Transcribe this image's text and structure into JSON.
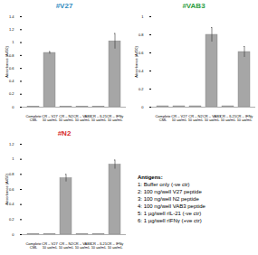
{
  "chart_data": [
    {
      "type": "bar",
      "title": "#V27",
      "categories": [
        "Complete\nCML",
        "CR – V27\n10 µg/mL",
        "CR – N2\n10 µg/mL",
        "CR – VAB3\n10 µg/mL",
        "CR – IL21\n10 µg/mL",
        "CR – IFNγ\n10 µg/mL"
      ],
      "values": [
        0.01,
        0.84,
        0.01,
        0.01,
        0.01,
        1.02
      ],
      "error_bars": [
        0,
        0.02,
        0,
        0,
        0,
        0.12
      ],
      "color": "#a6a6a6",
      "y_label": "Absorbance (A450)",
      "ylim": [
        0,
        1.4
      ],
      "yticks": [
        0,
        0.2,
        0.4,
        0.6,
        0.8,
        1,
        1.2,
        1.4
      ],
      "grid": false
    },
    {
      "type": "bar",
      "title": "#VAB3",
      "categories": [
        "Complete\nCML",
        "CR – V27\n10 µg/mL",
        "CR – N2\n10 µg/mL",
        "CR – VAB3\n10 µg/mL",
        "CR – IL21\n10 µg/mL",
        "CR – IFNγ\n10 µg/mL"
      ],
      "values": [
        0.01,
        0.01,
        0.01,
        0.8,
        0.01,
        0.61
      ],
      "error_bars": [
        0,
        0,
        0,
        0.08,
        0,
        0.06
      ],
      "color": "#a6a6a6",
      "y_label": "Absorbance (A450)",
      "ylim": [
        0,
        1
      ],
      "yticks": [
        0,
        0.2,
        0.4,
        0.6,
        0.8,
        1
      ],
      "grid": false
    },
    {
      "type": "bar",
      "title": "#N2",
      "categories": [
        "Complete\nCML",
        "CR – V27\n10 µg/mL",
        "CR – N2\n10 µg/mL",
        "CR – VAB3\n10 µg/mL",
        "CR – IL21\n10 µg/mL",
        "CR – IFNγ\n10 µg/mL"
      ],
      "values": [
        0.01,
        0.01,
        0.75,
        0.01,
        0.01,
        0.93
      ],
      "error_bars": [
        0,
        0,
        0.05,
        0,
        0,
        0.06
      ],
      "color": "#a6a6a6",
      "y_label": "Absorbance (A450)",
      "ylim": [
        0,
        1.2
      ],
      "yticks": [
        0,
        0.2,
        0.4,
        0.6,
        0.8,
        1,
        1.2
      ],
      "grid": false
    }
  ],
  "legend_box": {
    "title": "Antigens:",
    "items": [
      "1: Buffer only (-ve ctr)",
      "2: 100 ng/well V27 peptide",
      "3: 100 ng/well N2 peptide",
      "4: 100 ng/well VAB3 peptide",
      "5: 1 µg/well rIL-21 (-ve ctr)",
      "6: 1 µg/well rIFNγ (+ve ctr)"
    ]
  }
}
